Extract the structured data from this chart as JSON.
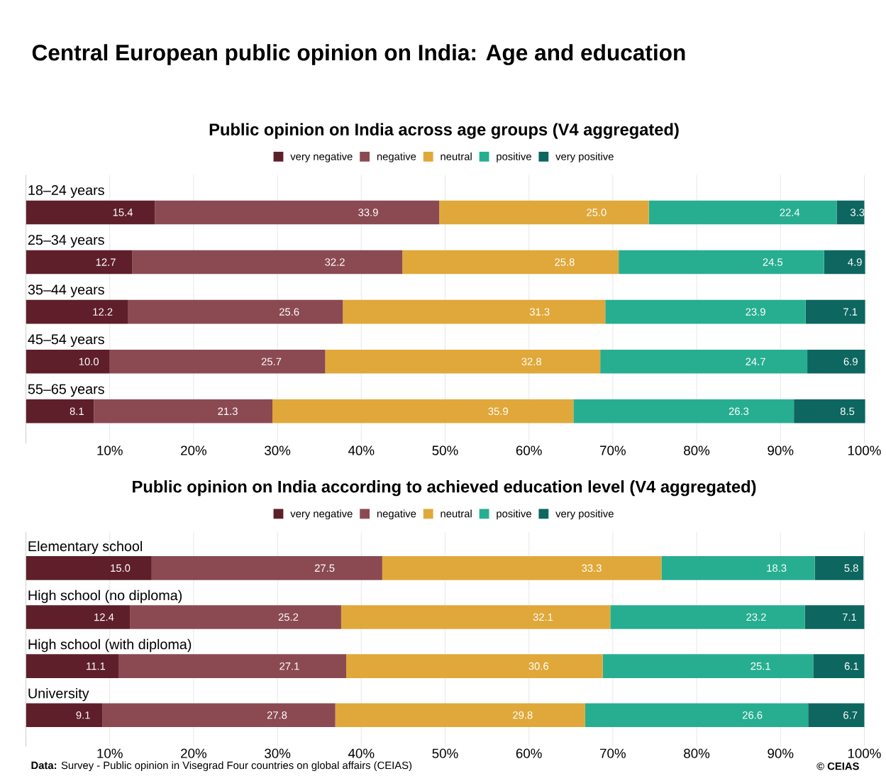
{
  "chart_data": [
    {
      "type": "bar",
      "orientation": "horizontal",
      "stacked": true,
      "title": "Central European public opinion on India: Age and education",
      "subtitle": "Public opinion on India across age groups (V4 aggregated)",
      "categories": [
        "18–24 years",
        "25–34 years",
        "35–44 years",
        "45–54 years",
        "55–65 years"
      ],
      "series": [
        {
          "name": "very negative",
          "color": "#5e1f2a",
          "values": [
            15.4,
            12.7,
            12.2,
            10.0,
            8.1
          ],
          "value_labels": [
            "15.4",
            "12.7",
            "12.2",
            "10.0",
            "8.1"
          ]
        },
        {
          "name": "negative",
          "color": "#8b4a52",
          "values": [
            33.9,
            32.2,
            25.6,
            25.7,
            21.3
          ],
          "value_labels": [
            "33.9",
            "32.2",
            "25.6",
            "25.7",
            "21.3"
          ]
        },
        {
          "name": "neutral",
          "color": "#e0a83a",
          "values": [
            25.0,
            25.8,
            31.3,
            32.8,
            35.9
          ],
          "value_labels": [
            "25.0",
            "25.8",
            "31.3",
            "32.8",
            "35.9"
          ]
        },
        {
          "name": "positive",
          "color": "#27ae91",
          "values": [
            22.4,
            24.5,
            23.9,
            24.7,
            26.3
          ],
          "value_labels": [
            "22.4",
            "24.5",
            "23.9",
            "24.7",
            "26.3"
          ]
        },
        {
          "name": "very positive",
          "color": "#0d6660",
          "values": [
            3.3,
            4.9,
            7.1,
            6.9,
            8.5
          ],
          "value_labels": [
            "3.3",
            "4.9",
            "7.1",
            "6.9",
            "8.5"
          ]
        }
      ],
      "xlim": [
        0,
        100
      ],
      "xticks": [
        {
          "value": 10,
          "label": "10%"
        },
        {
          "value": 20,
          "label": "20%"
        },
        {
          "value": 30,
          "label": "30%"
        },
        {
          "value": 40,
          "label": "40%"
        },
        {
          "value": 50,
          "label": "50%"
        },
        {
          "value": 60,
          "label": "60%"
        },
        {
          "value": 70,
          "label": "70%"
        },
        {
          "value": 80,
          "label": "80%"
        },
        {
          "value": 90,
          "label": "90%"
        },
        {
          "value": 100,
          "label": "100%"
        }
      ],
      "grid": "x",
      "legend": "top"
    },
    {
      "type": "bar",
      "orientation": "horizontal",
      "stacked": true,
      "title": "Public opinion on India according to achieved education level (V4 aggregated)",
      "categories": [
        "Elementary school",
        "High school (no diploma)",
        "High school (with diploma)",
        "University"
      ],
      "series": [
        {
          "name": "very negative",
          "color": "#5e1f2a",
          "values": [
            15.0,
            12.4,
            11.1,
            9.1
          ],
          "value_labels": [
            "15.0",
            "12.4",
            "11.1",
            "9.1"
          ]
        },
        {
          "name": "negative",
          "color": "#8b4a52",
          "values": [
            27.5,
            25.2,
            27.1,
            27.8
          ],
          "value_labels": [
            "27.5",
            "25.2",
            "27.1",
            "27.8"
          ]
        },
        {
          "name": "neutral",
          "color": "#e0a83a",
          "values": [
            33.3,
            32.1,
            30.6,
            29.8
          ],
          "value_labels": [
            "33.3",
            "32.1",
            "30.6",
            "29.8"
          ]
        },
        {
          "name": "positive",
          "color": "#27ae91",
          "values": [
            18.3,
            23.2,
            25.1,
            26.6
          ],
          "value_labels": [
            "18.3",
            "23.2",
            "25.1",
            "26.6"
          ]
        },
        {
          "name": "very positive",
          "color": "#0d6660",
          "values": [
            5.8,
            7.1,
            6.1,
            6.7
          ],
          "value_labels": [
            "5.8",
            "7.1",
            "6.1",
            "6.7"
          ]
        }
      ],
      "xlim": [
        0,
        100
      ],
      "xticks": [
        {
          "value": 10,
          "label": "10%"
        },
        {
          "value": 20,
          "label": "20%"
        },
        {
          "value": 30,
          "label": "30%"
        },
        {
          "value": 40,
          "label": "40%"
        },
        {
          "value": 50,
          "label": "50%"
        },
        {
          "value": 60,
          "label": "60%"
        },
        {
          "value": 70,
          "label": "70%"
        },
        {
          "value": 80,
          "label": "80%"
        },
        {
          "value": 90,
          "label": "90%"
        },
        {
          "value": 100,
          "label": "100%"
        }
      ],
      "grid": "x",
      "legend": "top",
      "annotations": [
        "**Data:** Survey - Public opinion in Visegrad Four countries on global affairs (CEIAS)",
        "© CEIAS"
      ]
    }
  ]
}
